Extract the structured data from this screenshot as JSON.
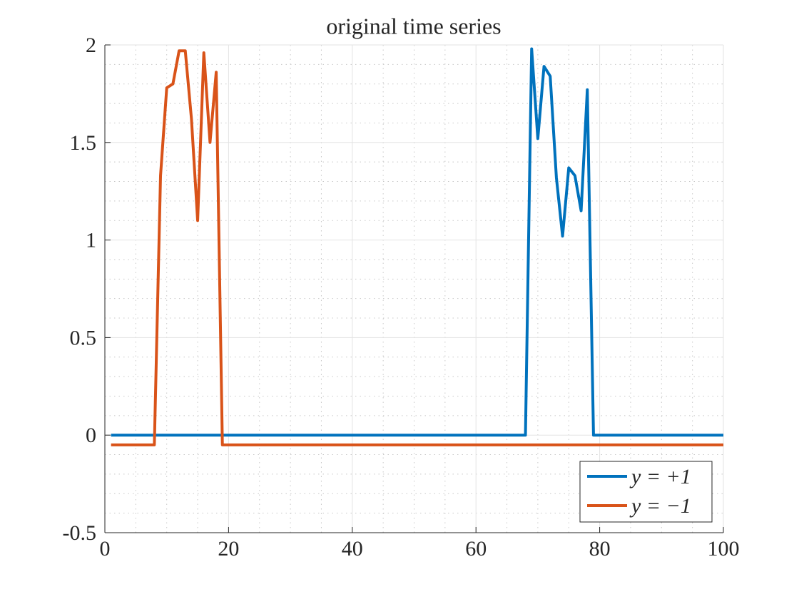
{
  "chart_data": {
    "type": "line",
    "title": "original time series",
    "x": [
      1,
      2,
      3,
      4,
      5,
      6,
      7,
      8,
      9,
      10,
      11,
      12,
      13,
      14,
      15,
      16,
      17,
      18,
      19,
      20,
      21,
      22,
      23,
      24,
      25,
      26,
      27,
      28,
      29,
      30,
      31,
      32,
      33,
      34,
      35,
      36,
      37,
      38,
      39,
      40,
      41,
      42,
      43,
      44,
      45,
      46,
      47,
      48,
      49,
      50,
      51,
      52,
      53,
      54,
      55,
      56,
      57,
      58,
      59,
      60,
      61,
      62,
      63,
      64,
      65,
      66,
      67,
      68,
      69,
      70,
      71,
      72,
      73,
      74,
      75,
      76,
      77,
      78,
      79,
      80,
      81,
      82,
      83,
      84,
      85,
      86,
      87,
      88,
      89,
      90,
      91,
      92,
      93,
      94,
      95,
      96,
      97,
      98,
      99,
      100
    ],
    "series": [
      {
        "name": "y = +1",
        "color": "#0072bd",
        "values": [
          0,
          0,
          0,
          0,
          0,
          0,
          0,
          0,
          0,
          0,
          0,
          0,
          0,
          0,
          0,
          0,
          0,
          0,
          0,
          0,
          0,
          0,
          0,
          0,
          0,
          0,
          0,
          0,
          0,
          0,
          0,
          0,
          0,
          0,
          0,
          0,
          0,
          0,
          0,
          0,
          0,
          0,
          0,
          0,
          0,
          0,
          0,
          0,
          0,
          0,
          0,
          0,
          0,
          0,
          0,
          0,
          0,
          0,
          0,
          0,
          0,
          0,
          0,
          0,
          0,
          0,
          0,
          0,
          1.98,
          1.52,
          1.89,
          1.84,
          1.32,
          1.02,
          1.37,
          1.33,
          1.15,
          1.77,
          0,
          0,
          0,
          0,
          0,
          0,
          0,
          0,
          0,
          0,
          0,
          0,
          0,
          0,
          0,
          0,
          0,
          0,
          0,
          0,
          0,
          0
        ]
      },
      {
        "name": "y = −1",
        "color": "#d95319",
        "values": [
          -0.05,
          -0.05,
          -0.05,
          -0.05,
          -0.05,
          -0.05,
          -0.05,
          -0.05,
          1.33,
          1.78,
          1.8,
          1.97,
          1.97,
          1.62,
          1.1,
          1.96,
          1.5,
          1.86,
          -0.05,
          -0.05,
          -0.05,
          -0.05,
          -0.05,
          -0.05,
          -0.05,
          -0.05,
          -0.05,
          -0.05,
          -0.05,
          -0.05,
          -0.05,
          -0.05,
          -0.05,
          -0.05,
          -0.05,
          -0.05,
          -0.05,
          -0.05,
          -0.05,
          -0.05,
          -0.05,
          -0.05,
          -0.05,
          -0.05,
          -0.05,
          -0.05,
          -0.05,
          -0.05,
          -0.05,
          -0.05,
          -0.05,
          -0.05,
          -0.05,
          -0.05,
          -0.05,
          -0.05,
          -0.05,
          -0.05,
          -0.05,
          -0.05,
          -0.05,
          -0.05,
          -0.05,
          -0.05,
          -0.05,
          -0.05,
          -0.05,
          -0.05,
          -0.05,
          -0.05,
          -0.05,
          -0.05,
          -0.05,
          -0.05,
          -0.05,
          -0.05,
          -0.05,
          -0.05,
          -0.05,
          -0.05,
          -0.05,
          -0.05,
          -0.05,
          -0.05,
          -0.05,
          -0.05,
          -0.05,
          -0.05,
          -0.05,
          -0.05,
          -0.05,
          -0.05,
          -0.05,
          -0.05,
          -0.05,
          -0.05,
          -0.05,
          -0.05,
          -0.05,
          -0.05
        ]
      }
    ],
    "xlim": [
      0,
      100
    ],
    "xticks": [
      0,
      20,
      40,
      60,
      80,
      100
    ],
    "ylim": [
      -0.5,
      2
    ],
    "yticks": [
      -0.5,
      0,
      0.5,
      1,
      1.5,
      2
    ],
    "grid": true,
    "minor_grid": true,
    "legend": "bottom-right"
  }
}
